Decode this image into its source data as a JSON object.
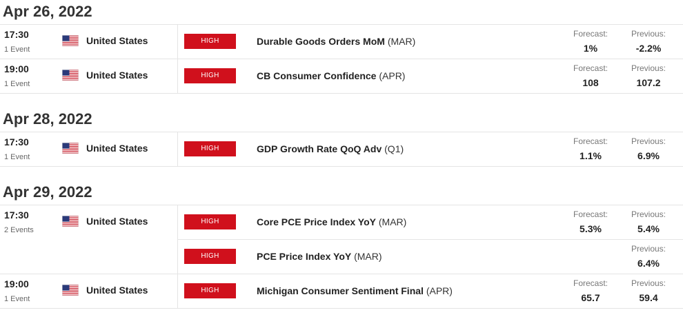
{
  "labels": {
    "forecast": "Forecast:",
    "previous": "Previous:"
  },
  "days": [
    {
      "date": "Apr 26, 2022",
      "groups": [
        {
          "time": "17:30",
          "count": "1 Event",
          "country": "United States",
          "events": [
            {
              "impact": "HIGH",
              "name": "Durable Goods Orders MoM",
              "period": "(MAR)",
              "forecast": "1%",
              "previous": "-2.2%"
            }
          ]
        },
        {
          "time": "19:00",
          "count": "1 Event",
          "country": "United States",
          "events": [
            {
              "impact": "HIGH",
              "name": "CB Consumer Confidence",
              "period": "(APR)",
              "forecast": "108",
              "previous": "107.2"
            }
          ]
        }
      ]
    },
    {
      "date": "Apr 28, 2022",
      "groups": [
        {
          "time": "17:30",
          "count": "1 Event",
          "country": "United States",
          "events": [
            {
              "impact": "HIGH",
              "name": "GDP Growth Rate QoQ Adv",
              "period": "(Q1)",
              "forecast": "1.1%",
              "previous": "6.9%"
            }
          ]
        }
      ]
    },
    {
      "date": "Apr 29, 2022",
      "groups": [
        {
          "time": "17:30",
          "count": "2 Events",
          "country": "United States",
          "events": [
            {
              "impact": "HIGH",
              "name": "Core PCE Price Index YoY",
              "period": "(MAR)",
              "forecast": "5.3%",
              "previous": "5.4%"
            },
            {
              "impact": "HIGH",
              "name": "PCE Price Index YoY",
              "period": "(MAR)",
              "previous": "6.4%"
            }
          ]
        },
        {
          "time": "19:00",
          "count": "1 Event",
          "country": "United States",
          "events": [
            {
              "impact": "HIGH",
              "name": "Michigan Consumer Sentiment Final",
              "period": "(APR)",
              "forecast": "65.7",
              "previous": "59.4"
            }
          ]
        }
      ]
    }
  ],
  "colors": {
    "high_impact": "#d0101c",
    "divider": "#e4e4e4"
  },
  "icons": {
    "flag": "us-flag-icon"
  }
}
